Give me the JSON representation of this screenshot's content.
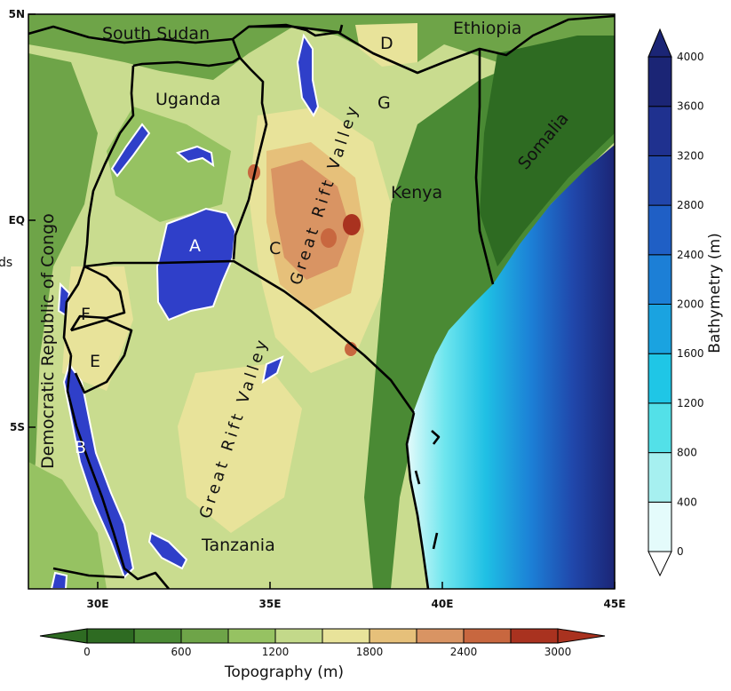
{
  "map": {
    "countries": {
      "south_sudan": "South Sudan",
      "ethiopia": "Ethiopia",
      "uganda": "Uganda",
      "kenya": "Kenya",
      "somalia": "Somalia",
      "drc": "Democratic Republic of Congo",
      "tanzania": "Tanzania"
    },
    "region_letters": [
      "A",
      "B",
      "C",
      "D",
      "E",
      "F",
      "G"
    ],
    "rift_label": "Great Rift Valley",
    "cut_label": "ds",
    "lat_ticks": [
      "5N",
      "EQ",
      "5S"
    ],
    "lon_ticks": [
      "30E",
      "35E",
      "40E",
      "45E"
    ]
  },
  "topography_bar": {
    "title": "Topography (m)",
    "ticks": [
      "0",
      "600",
      "1200",
      "1800",
      "2400",
      "3000"
    ],
    "colors": [
      "#2e6b22",
      "#4a8a34",
      "#6ea448",
      "#96c262",
      "#c3d98a",
      "#e8e39a",
      "#e6c07a",
      "#d99463",
      "#c8673f",
      "#a9321f"
    ]
  },
  "bathymetry_bar": {
    "title": "Bathymetry (m)",
    "ticks": [
      "0",
      "400",
      "800",
      "1200",
      "1600",
      "2000",
      "2400",
      "2800",
      "3200",
      "3600",
      "4000"
    ],
    "colors": [
      "#e4fbfb",
      "#a6f0f0",
      "#53e0e8",
      "#1fc6e6",
      "#1aa3e0",
      "#1c7fd6",
      "#1f5fc5",
      "#2146ab",
      "#1f318f",
      "#1b2575"
    ]
  }
}
